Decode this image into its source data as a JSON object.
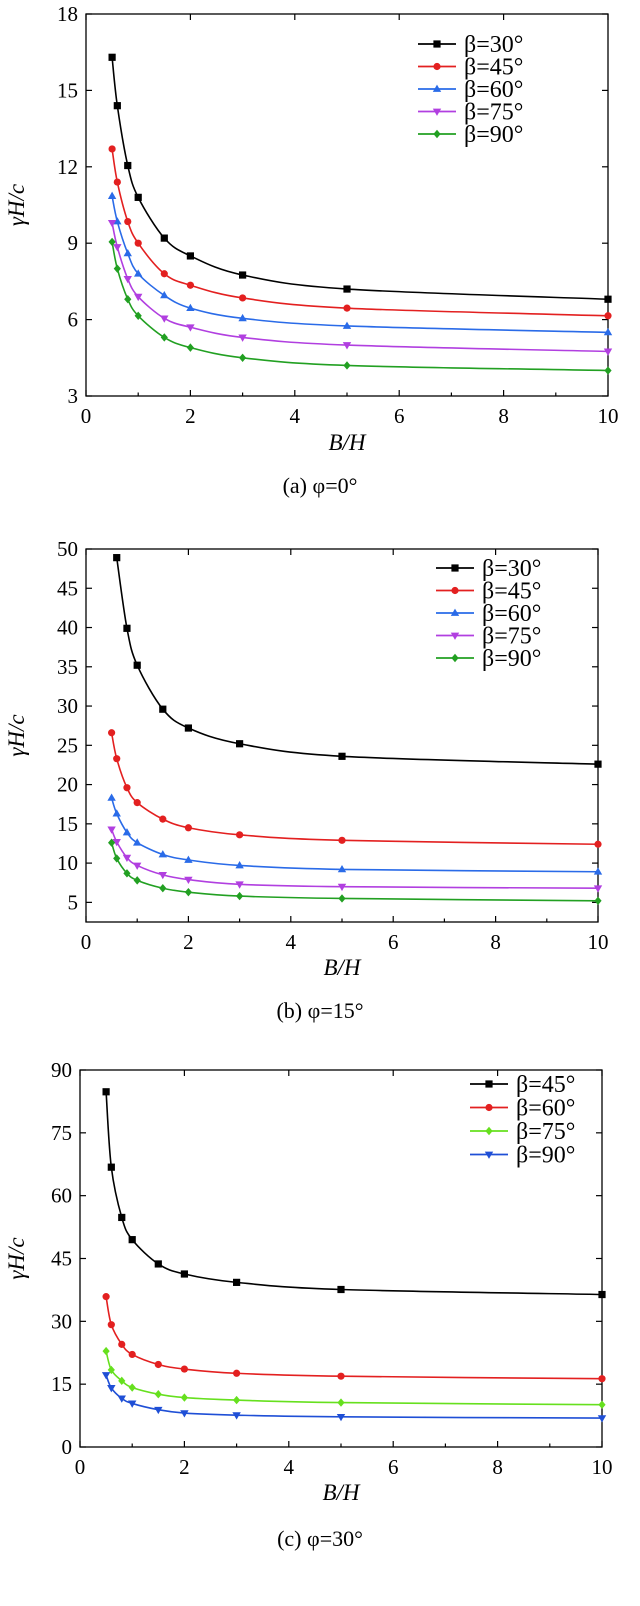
{
  "chart_data": [
    {
      "type": "line",
      "xlabel": "B/H",
      "ylabel": "γH/c",
      "caption": "(a) φ=0°",
      "xlim": [
        0,
        10
      ],
      "ylim": [
        3,
        18
      ],
      "xticks": [
        0,
        2,
        4,
        6,
        8,
        10
      ],
      "yticks": [
        3,
        6,
        9,
        12,
        15,
        18
      ],
      "legend_position": "top-right",
      "x": [
        0.5,
        0.6,
        0.8,
        1,
        1.5,
        2,
        3,
        5,
        10
      ],
      "series": [
        {
          "name": "β=30°",
          "color": "#000000",
          "marker": "square",
          "values": [
            16.3,
            14.4,
            12.05,
            10.8,
            9.2,
            8.5,
            7.75,
            7.2,
            6.8
          ]
        },
        {
          "name": "β=45°",
          "color": "#e32020",
          "marker": "circle",
          "values": [
            12.7,
            11.4,
            9.85,
            9.0,
            7.8,
            7.35,
            6.85,
            6.45,
            6.15
          ]
        },
        {
          "name": "β=60°",
          "color": "#2a6be8",
          "marker": "triangle-up",
          "values": [
            10.85,
            9.85,
            8.6,
            7.8,
            6.95,
            6.45,
            6.05,
            5.75,
            5.5
          ]
        },
        {
          "name": "β=75°",
          "color": "#b13fe0",
          "marker": "triangle-down",
          "values": [
            9.8,
            8.85,
            7.6,
            6.9,
            6.05,
            5.7,
            5.3,
            5.0,
            4.75
          ]
        },
        {
          "name": "β=90°",
          "color": "#22a022",
          "marker": "diamond",
          "values": [
            9.05,
            8.0,
            6.8,
            6.15,
            5.3,
            4.9,
            4.5,
            4.2,
            4.0
          ]
        }
      ]
    },
    {
      "type": "line",
      "xlabel": "B/H",
      "ylabel": "γH/c",
      "caption": "(b) φ=15°",
      "xlim": [
        0,
        10
      ],
      "ylim": [
        2.5,
        50
      ],
      "xticks": [
        0,
        2,
        4,
        6,
        8,
        10
      ],
      "yticks": [
        5,
        10,
        15,
        20,
        25,
        30,
        35,
        40,
        45,
        50
      ],
      "legend_position": "top-right",
      "x": [
        0.5,
        0.6,
        0.8,
        1,
        1.5,
        2,
        3,
        5,
        10
      ],
      "series": [
        {
          "name": "β=30°",
          "color": "#000000",
          "marker": "square",
          "x": [
            0.6,
            0.8,
            1,
            1.5,
            2,
            3,
            5,
            10
          ],
          "values": [
            48.9,
            39.9,
            35.2,
            29.6,
            27.2,
            25.2,
            23.6,
            22.6
          ]
        },
        {
          "name": "β=45°",
          "color": "#e32020",
          "marker": "circle",
          "values": [
            26.6,
            23.3,
            19.6,
            17.7,
            15.6,
            14.5,
            13.6,
            12.9,
            12.4
          ]
        },
        {
          "name": "β=60°",
          "color": "#2a6be8",
          "marker": "triangle-up",
          "values": [
            18.3,
            16.3,
            13.9,
            12.6,
            11.1,
            10.4,
            9.7,
            9.2,
            8.9
          ]
        },
        {
          "name": "β=75°",
          "color": "#b13fe0",
          "marker": "triangle-down",
          "values": [
            14.3,
            12.7,
            10.7,
            9.7,
            8.5,
            7.9,
            7.3,
            7.0,
            6.8
          ]
        },
        {
          "name": "β=90°",
          "color": "#22a022",
          "marker": "diamond",
          "values": [
            12.6,
            10.6,
            8.7,
            7.8,
            6.8,
            6.3,
            5.8,
            5.5,
            5.2
          ]
        }
      ]
    },
    {
      "type": "line",
      "xlabel": "B/H",
      "ylabel": "γH/c",
      "caption": "(c) φ=30°",
      "xlim": [
        0,
        10
      ],
      "ylim": [
        0,
        90
      ],
      "xticks": [
        0,
        2,
        4,
        6,
        8,
        10
      ],
      "yticks": [
        0,
        15,
        30,
        45,
        60,
        75,
        90
      ],
      "legend_position": "top-right",
      "x": [
        0.5,
        0.6,
        0.8,
        1,
        1.5,
        2,
        3,
        5,
        10
      ],
      "series": [
        {
          "name": "β=45°",
          "color": "#000000",
          "marker": "square",
          "values": [
            84.8,
            66.8,
            54.8,
            49.5,
            43.7,
            41.3,
            39.3,
            37.6,
            36.4
          ]
        },
        {
          "name": "β=60°",
          "color": "#e32020",
          "marker": "circle",
          "values": [
            35.9,
            29.2,
            24.5,
            22.1,
            19.7,
            18.6,
            17.6,
            16.9,
            16.3
          ]
        },
        {
          "name": "β=75°",
          "color": "#66e01e",
          "marker": "diamond",
          "values": [
            22.9,
            18.4,
            15.8,
            14.2,
            12.6,
            11.8,
            11.2,
            10.6,
            10.1
          ]
        },
        {
          "name": "β=90°",
          "color": "#1f4fd6",
          "marker": "triangle-down",
          "values": [
            17.2,
            14.1,
            11.6,
            10.4,
            8.9,
            8.1,
            7.6,
            7.2,
            6.9
          ]
        }
      ]
    }
  ]
}
